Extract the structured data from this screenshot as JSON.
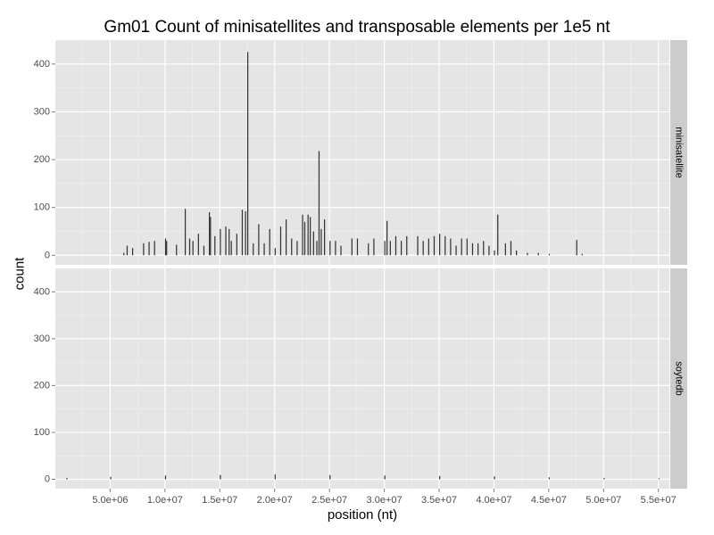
{
  "chart_data": {
    "type": "bar",
    "title": "Gm01 Count of minisatellites and transposable elements per 1e5 nt",
    "xlabel": "position (nt)",
    "ylabel": "count",
    "xlim": [
      0,
      56000000
    ],
    "ylim": [
      -20,
      450
    ],
    "x_ticks": [
      5000000,
      10000000,
      15000000,
      20000000,
      25000000,
      30000000,
      35000000,
      40000000,
      45000000,
      50000000,
      55000000
    ],
    "x_tick_labels": [
      "5.0e+06",
      "1.0e+07",
      "1.5e+07",
      "2.0e+07",
      "2.5e+07",
      "3.0e+07",
      "3.5e+07",
      "4.0e+07",
      "4.5e+07",
      "5.0e+07",
      "5.5e+07"
    ],
    "y_ticks": [
      0,
      100,
      200,
      300,
      400
    ],
    "y_tick_labels": [
      "0",
      "100",
      "200",
      "300",
      "400"
    ],
    "grid": true,
    "bar_color": "#333333",
    "panel_background": "#e5e5e5",
    "strip_background": "#cccccc",
    "facets": [
      {
        "label": "minisatellite",
        "x": [
          6200000,
          6500000,
          7000000,
          8000000,
          8500000,
          9000000,
          10000000,
          10100000,
          11000000,
          11800000,
          12200000,
          12500000,
          13000000,
          13500000,
          14000000,
          14100000,
          14500000,
          15000000,
          15500000,
          15800000,
          16000000,
          16500000,
          17000000,
          17300000,
          17500000,
          18000000,
          18500000,
          19000000,
          19500000,
          20000000,
          20500000,
          21000000,
          21500000,
          22000000,
          22500000,
          22700000,
          23000000,
          23200000,
          23500000,
          23800000,
          24000000,
          24200000,
          24500000,
          25000000,
          25500000,
          26000000,
          27000000,
          27500000,
          28500000,
          29000000,
          30000000,
          30200000,
          30500000,
          31000000,
          31500000,
          32000000,
          33000000,
          33500000,
          34000000,
          34500000,
          35000000,
          35500000,
          36000000,
          36500000,
          37000000,
          37500000,
          38000000,
          38500000,
          39000000,
          39500000,
          40000000,
          40300000,
          41000000,
          41500000,
          42000000,
          43000000,
          44000000,
          45000000,
          47500000,
          48000000
        ],
        "values": [
          5,
          20,
          15,
          25,
          28,
          30,
          35,
          30,
          22,
          97,
          35,
          30,
          45,
          20,
          90,
          80,
          40,
          55,
          60,
          55,
          30,
          45,
          95,
          92,
          425,
          25,
          65,
          25,
          55,
          15,
          60,
          75,
          35,
          30,
          85,
          70,
          85,
          80,
          50,
          30,
          218,
          55,
          75,
          30,
          30,
          20,
          35,
          35,
          25,
          35,
          30,
          72,
          30,
          40,
          30,
          40,
          40,
          30,
          35,
          40,
          45,
          40,
          35,
          20,
          35,
          35,
          25,
          25,
          30,
          20,
          10,
          85,
          25,
          30,
          10,
          5,
          5,
          3,
          32,
          3
        ]
      },
      {
        "label": "soytedb",
        "x": [
          1000000,
          5000000,
          10000000,
          15000000,
          20000000,
          25000000,
          30000000,
          35000000,
          40000000,
          45000000,
          50000000,
          55000000
        ],
        "values": [
          3,
          5,
          8,
          9,
          10,
          9,
          8,
          7,
          6,
          4,
          3,
          2
        ]
      }
    ]
  }
}
